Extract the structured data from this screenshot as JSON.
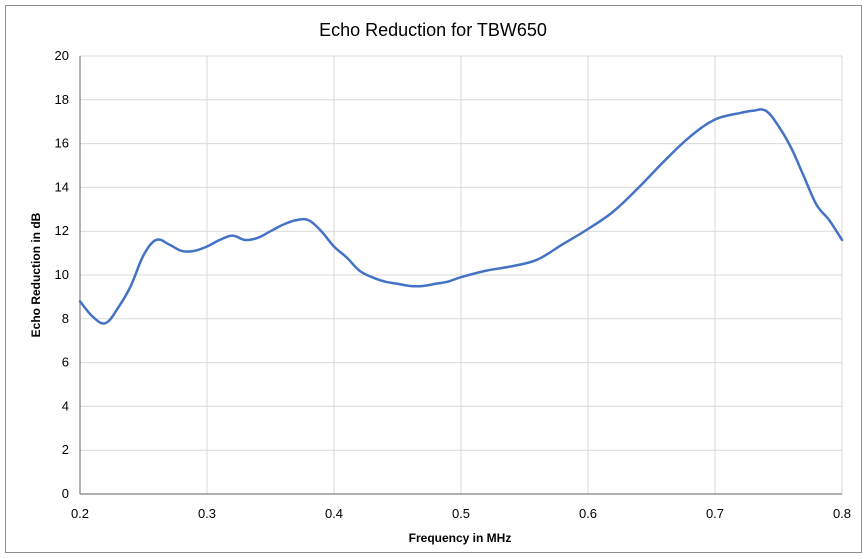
{
  "chart_data": {
    "type": "line",
    "title": "Echo Reduction for TBW650",
    "xlabel": "Frequency in MHz",
    "ylabel": "Echo Reduction in dB",
    "xlim": [
      0.2,
      0.8
    ],
    "ylim": [
      0,
      20
    ],
    "x_ticks": [
      "0.2",
      "0.3",
      "0.4",
      "0.5",
      "0.6",
      "0.7",
      "0.8"
    ],
    "y_ticks": [
      "0",
      "2",
      "4",
      "6",
      "8",
      "10",
      "12",
      "14",
      "16",
      "18",
      "20"
    ],
    "grid": true,
    "legend": "none",
    "series": [
      {
        "color": "#4472c4",
        "x": [
          0.2,
          0.21,
          0.22,
          0.23,
          0.24,
          0.25,
          0.26,
          0.27,
          0.28,
          0.29,
          0.3,
          0.31,
          0.32,
          0.33,
          0.34,
          0.35,
          0.36,
          0.37,
          0.38,
          0.39,
          0.4,
          0.41,
          0.42,
          0.43,
          0.44,
          0.45,
          0.46,
          0.47,
          0.48,
          0.49,
          0.5,
          0.52,
          0.54,
          0.56,
          0.58,
          0.6,
          0.62,
          0.64,
          0.66,
          0.68,
          0.7,
          0.72,
          0.73,
          0.74,
          0.75,
          0.76,
          0.77,
          0.78,
          0.79,
          0.8
        ],
        "values": [
          8.8,
          8.1,
          7.8,
          8.5,
          9.5,
          10.9,
          11.6,
          11.4,
          11.1,
          11.1,
          11.3,
          11.6,
          11.8,
          11.6,
          11.7,
          12.0,
          12.3,
          12.5,
          12.5,
          12.0,
          11.3,
          10.8,
          10.2,
          9.9,
          9.7,
          9.6,
          9.5,
          9.5,
          9.6,
          9.7,
          9.9,
          10.2,
          10.4,
          10.7,
          11.4,
          12.1,
          12.9,
          14.0,
          15.2,
          16.3,
          17.1,
          17.4,
          17.5,
          17.5,
          16.8,
          15.8,
          14.5,
          13.2,
          12.5,
          11.6
        ]
      }
    ]
  }
}
